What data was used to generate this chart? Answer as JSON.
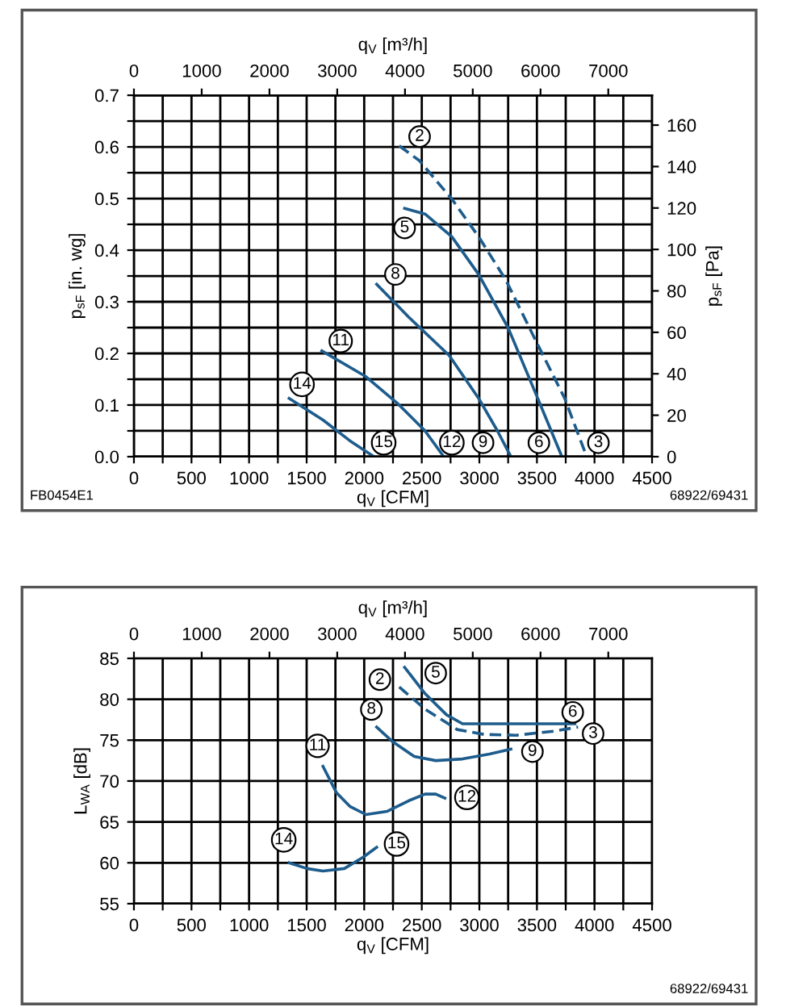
{
  "chart_data": [
    {
      "type": "line",
      "xlabel": "q$_{V}$ [CFM]",
      "ylabel": "p$_{sF}$ [in. wg]",
      "y2label": "p$_{sF}$ [Pa]",
      "x2label": "q$_{V}$ [m³/h]",
      "xlim": [
        0,
        4500
      ],
      "xticks": [
        0,
        {
          "value": 250,
          "label": null
        },
        500,
        {
          "value": 750,
          "label": null
        },
        1000,
        {
          "value": 1250,
          "label": null
        },
        1500,
        {
          "value": 1750,
          "label": null
        },
        2000,
        {
          "value": 2250,
          "label": null
        },
        2500,
        {
          "value": 2750,
          "label": null
        },
        3000,
        {
          "value": 3250,
          "label": null
        },
        3500,
        {
          "value": 3750,
          "label": null
        },
        4000,
        {
          "value": 4250,
          "label": null
        },
        4500
      ],
      "ylim": [
        0,
        0.7
      ],
      "yticks": [
        {
          "value": 0,
          "label": "0.0"
        },
        {
          "value": 0.05,
          "label": null
        },
        0.1,
        {
          "value": 0.15,
          "label": null
        },
        0.2,
        {
          "value": 0.25,
          "label": null
        },
        0.3,
        {
          "value": 0.35,
          "label": null
        },
        0.4,
        {
          "value": 0.45,
          "label": null
        },
        0.5,
        {
          "value": 0.55,
          "label": null
        },
        0.6,
        {
          "value": 0.65,
          "label": null
        },
        0.7
      ],
      "x2lim": [
        0,
        7646
      ],
      "x2ticks": [
        0,
        1000,
        2000,
        3000,
        4000,
        5000,
        6000,
        7000
      ],
      "y2lim": [
        0,
        174.4
      ],
      "y2ticks": [
        0,
        20,
        40,
        60,
        80,
        100,
        120,
        140,
        160
      ],
      "grid": true,
      "series": [
        {
          "color": "#1d5c8c",
          "line_style": "dashed",
          "x": [
            2304,
            2481,
            2761,
            2994,
            3228,
            3507,
            3741,
            3927
          ],
          "values": [
            0.602,
            0.573,
            0.499,
            0.426,
            0.343,
            0.217,
            0.113,
            0.003
          ]
        },
        {
          "color": "#1d5c8c",
          "line_style": "solid",
          "x": [
            2351,
            2528,
            2761,
            2994,
            3251,
            3507,
            3717
          ],
          "values": [
            0.481,
            0.47,
            0.426,
            0.353,
            0.249,
            0.113,
            0
          ]
        },
        {
          "color": "#1d5c8c",
          "line_style": "solid",
          "x": [
            2108,
            2388,
            2738,
            2994,
            3157,
            3274
          ],
          "values": [
            0.334,
            0.27,
            0.196,
            0.113,
            0.05,
            0
          ]
        },
        {
          "color": "#1d5c8c",
          "line_style": "solid",
          "x": [
            1632,
            2015,
            2295,
            2528,
            2691
          ],
          "values": [
            0.205,
            0.155,
            0.102,
            0.05,
            0
          ]
        },
        {
          "color": "#1d5c8c",
          "line_style": "solid",
          "x": [
            1348,
            1642,
            1875,
            2085
          ],
          "values": [
            0.113,
            0.071,
            0.031,
            0
          ]
        }
      ],
      "annotations": [
        {
          "text": "2",
          "x": 2481,
          "y": 0.62
        },
        {
          "text": "5",
          "x": 2351,
          "y": 0.443
        },
        {
          "text": "8",
          "x": 2271,
          "y": 0.353
        },
        {
          "text": "11",
          "x": 1796,
          "y": 0.224
        },
        {
          "text": "14",
          "x": 1460,
          "y": 0.14
        },
        {
          "text": "15",
          "x": 2169,
          "y": 0.027
        },
        {
          "text": "12",
          "x": 2761,
          "y": 0.027
        },
        {
          "text": "9",
          "x": 3032,
          "y": 0.027
        },
        {
          "text": "6",
          "x": 3517,
          "y": 0.027
        },
        {
          "text": "3",
          "x": 4034,
          "y": 0.027
        },
        "FB0454E1",
        "68922/69431"
      ]
    },
    {
      "type": "line",
      "xlabel": "q$_{V}$ [CFM]",
      "ylabel": "L$_{WA}$ [dB]",
      "x2label": "q$_{V}$ [m³/h]",
      "xlim": [
        0,
        4500
      ],
      "xticks": [
        0,
        {
          "value": 250,
          "label": null
        },
        500,
        {
          "value": 750,
          "label": null
        },
        1000,
        {
          "value": 1250,
          "label": null
        },
        1500,
        {
          "value": 1750,
          "label": null
        },
        2000,
        {
          "value": 2250,
          "label": null
        },
        2500,
        {
          "value": 2750,
          "label": null
        },
        3000,
        {
          "value": 3250,
          "label": null
        },
        3500,
        {
          "value": 3750,
          "label": null
        },
        4000,
        {
          "value": 4250,
          "label": null
        },
        4500
      ],
      "ylim": [
        55,
        85
      ],
      "yticks": [
        55,
        60,
        65,
        70,
        75,
        80,
        85
      ],
      "x2lim": [
        0,
        7646
      ],
      "x2ticks": [
        0,
        1000,
        2000,
        3000,
        4000,
        5000,
        6000,
        7000
      ],
      "grid": true,
      "series": [
        {
          "color": "#1d5c8c",
          "line_style": "dashed",
          "x": [
            2304,
            2528,
            2808,
            3041,
            3321,
            3647,
            3857
          ],
          "values": [
            81.5,
            78.8,
            76.3,
            75.7,
            75.6,
            76.1,
            76.6
          ]
        },
        {
          "color": "#1d5c8c",
          "line_style": "solid",
          "x": [
            2351,
            2528,
            2715,
            2854,
            3507,
            3830
          ],
          "values": [
            83.9,
            80.7,
            78.1,
            77.0,
            77.0,
            77.0
          ]
        },
        {
          "color": "#1d5c8c",
          "line_style": "solid",
          "x": [
            2108,
            2248,
            2435,
            2621,
            2854,
            3088,
            3274
          ],
          "values": [
            76.6,
            74.8,
            73.0,
            72.5,
            72.7,
            73.3,
            73.9
          ]
        },
        {
          "color": "#1d5c8c",
          "line_style": "solid",
          "x": [
            1642,
            1758,
            1875,
            2015,
            2201,
            2388,
            2528,
            2621,
            2701
          ],
          "values": [
            71.8,
            68.6,
            66.9,
            65.9,
            66.3,
            67.6,
            68.4,
            68.4,
            67.9
          ]
        },
        {
          "color": "#1d5c8c",
          "line_style": "solid",
          "x": [
            1348,
            1502,
            1642,
            1828,
            1992,
            2108
          ],
          "values": [
            60.0,
            59.3,
            59.0,
            59.3,
            60.7,
            61.9
          ]
        }
      ],
      "annotations": [
        {
          "text": "2",
          "x": 2136,
          "y": 82.4
        },
        {
          "text": "5",
          "x": 2621,
          "y": 83.2
        },
        {
          "text": "8",
          "x": 2062,
          "y": 78.75
        },
        {
          "text": "6",
          "x": 3811,
          "y": 78.4
        },
        {
          "text": "3",
          "x": 3988,
          "y": 75.8
        },
        {
          "text": "9",
          "x": 3461,
          "y": 73.6
        },
        {
          "text": "11",
          "x": 1595,
          "y": 74.3
        },
        {
          "text": "12",
          "x": 2892,
          "y": 68.0
        },
        {
          "text": "14",
          "x": 1301,
          "y": 62.8
        },
        {
          "text": "15",
          "x": 2281,
          "y": 62.3
        },
        "68922/69431"
      ]
    }
  ]
}
